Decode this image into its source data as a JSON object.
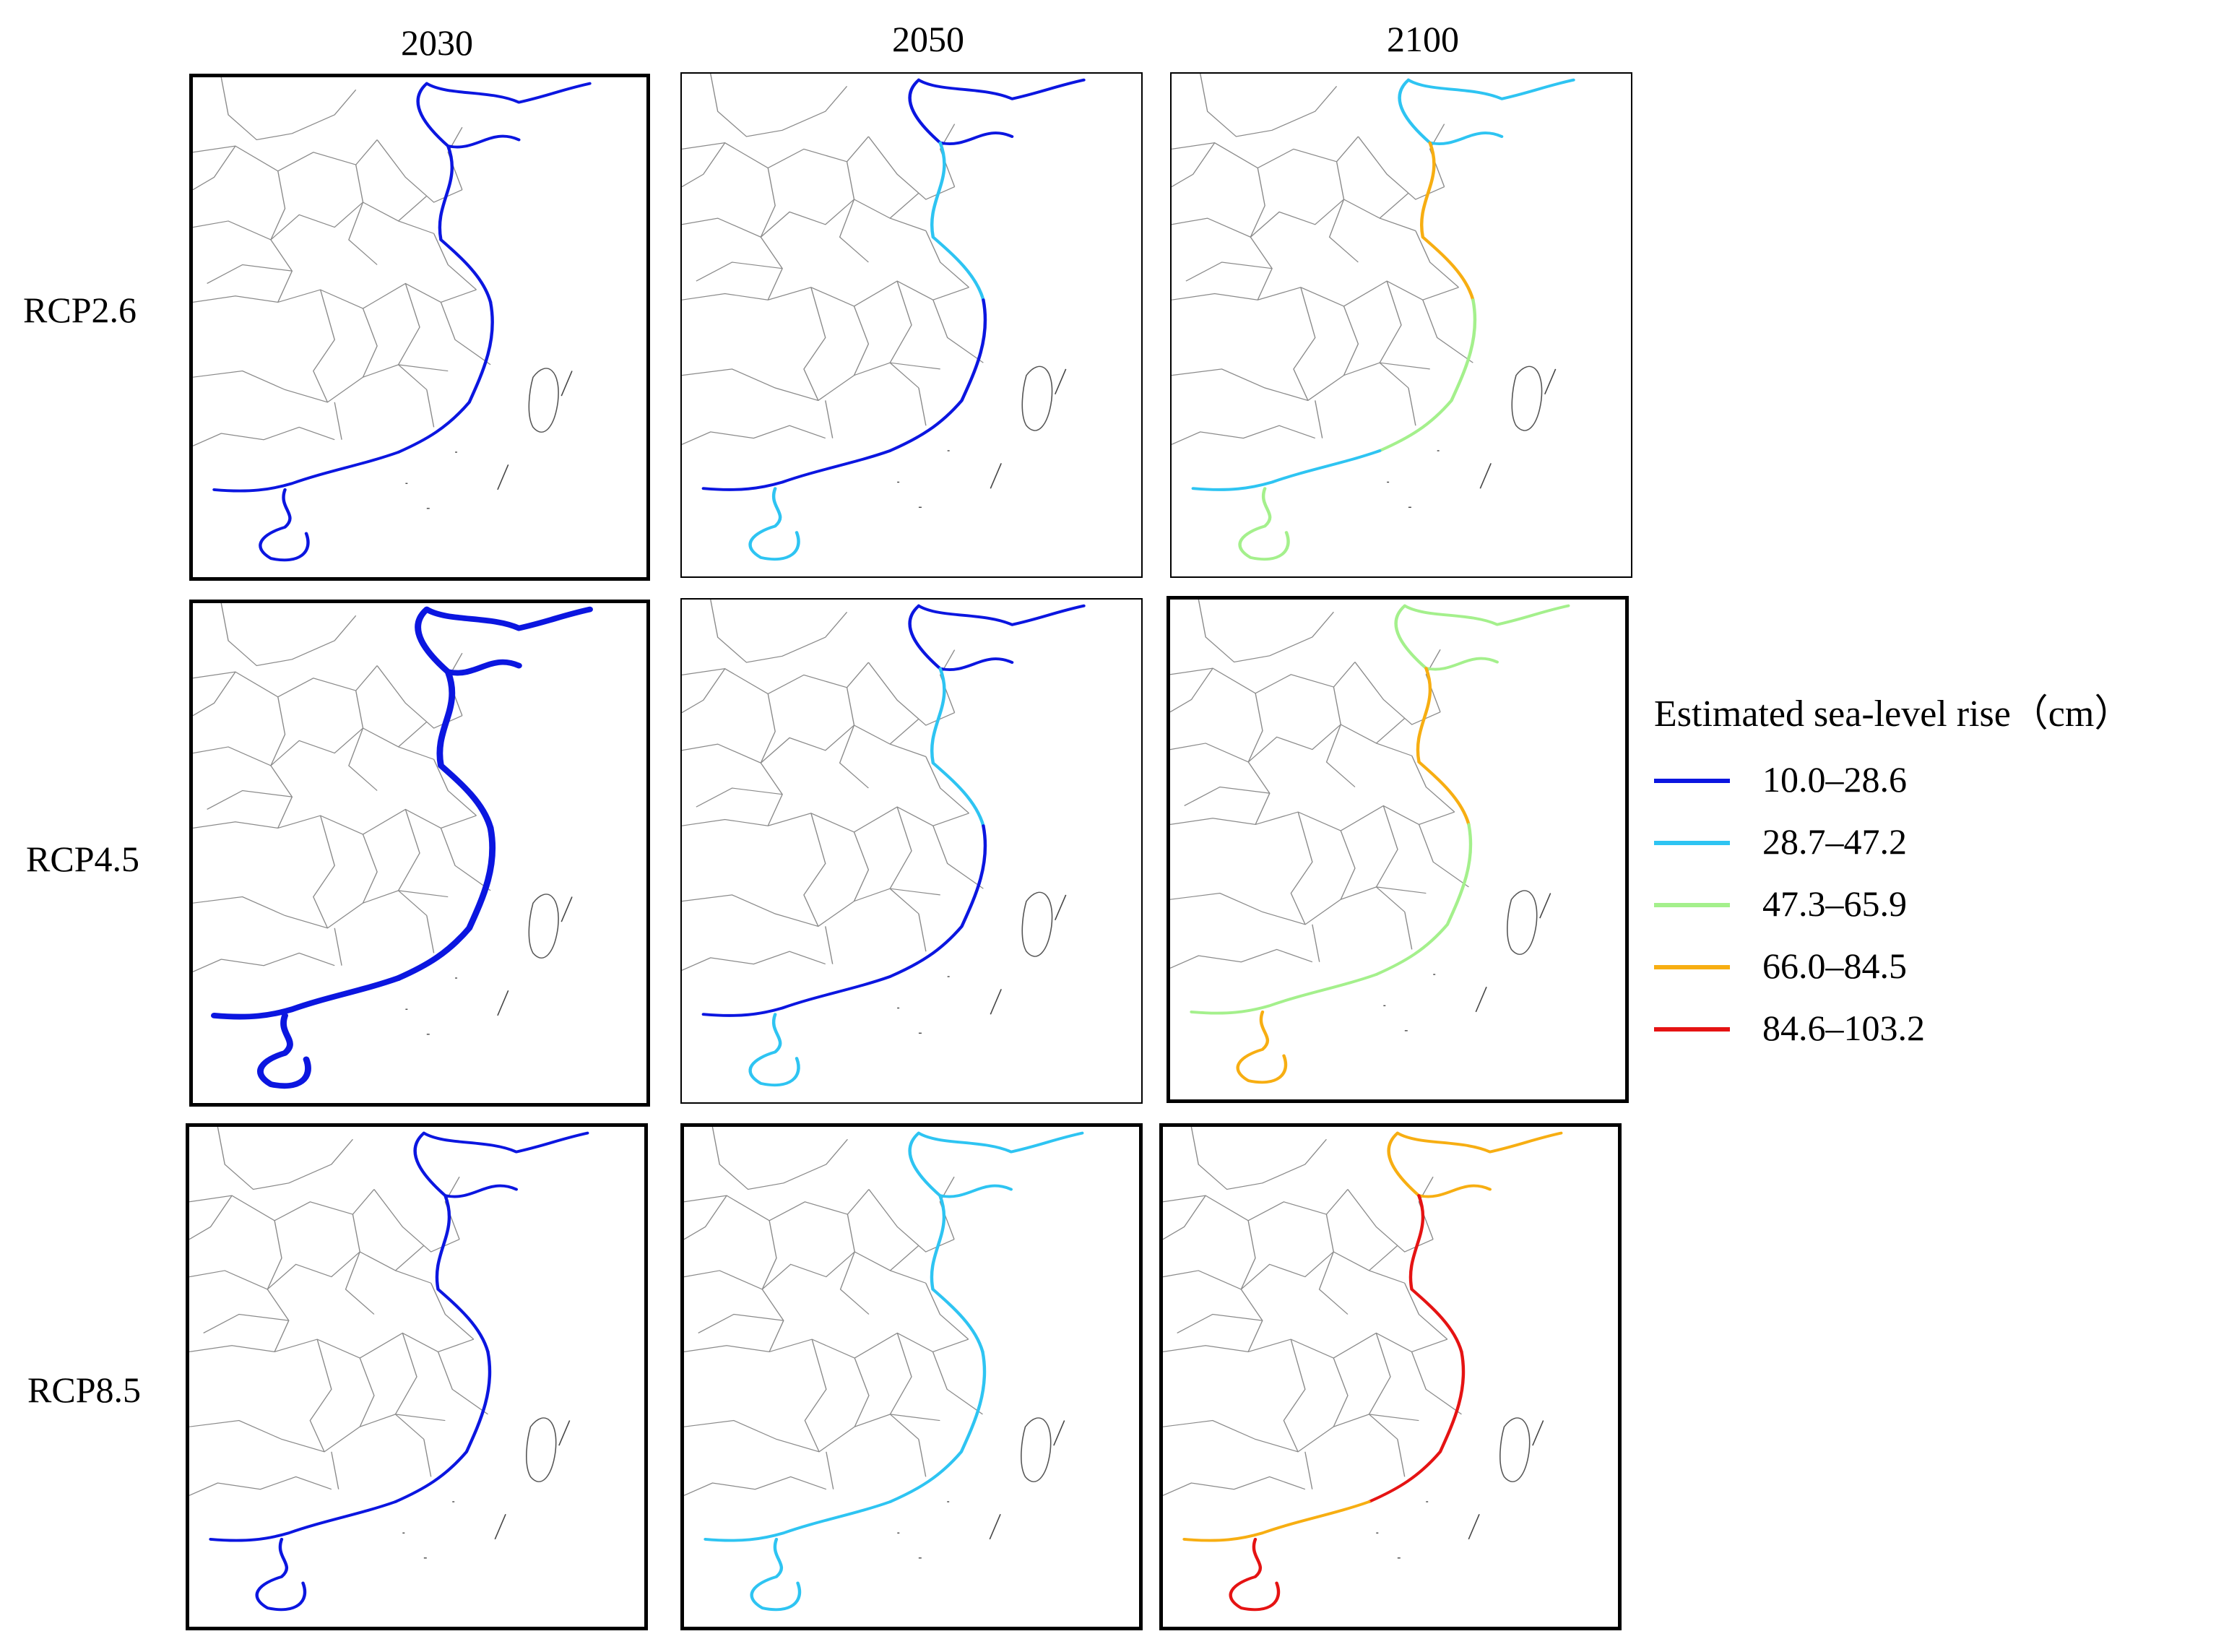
{
  "columns": [
    "2030",
    "2050",
    "2100"
  ],
  "rows": [
    "RCP2.6",
    "RCP4.5",
    "RCP8.5"
  ],
  "legend": {
    "title": "Estimated sea-level rise（cm）",
    "classes": [
      {
        "label": "10.0–28.6",
        "color": "#0b16e0"
      },
      {
        "label": "28.7–47.2",
        "color": "#2ec4f2"
      },
      {
        "label": "47.3–65.9",
        "color": "#a4f08c"
      },
      {
        "label": "66.0–84.5",
        "color": "#f7ae12"
      },
      {
        "label": "84.6–103.2",
        "color": "#e51313"
      }
    ]
  },
  "panels": [
    {
      "scenario": "RCP2.6",
      "year": "2030",
      "segments": [
        "10.0–28.6",
        "10.0–28.6",
        "10.0–28.6",
        "10.0–28.6",
        "10.0–28.6",
        "10.0–28.6"
      ]
    },
    {
      "scenario": "RCP2.6",
      "year": "2050",
      "segments": [
        "10.0–28.6",
        "10.0–28.6",
        "28.7–47.2",
        "10.0–28.6",
        "10.0–28.6",
        "28.7–47.2"
      ]
    },
    {
      "scenario": "RCP2.6",
      "year": "2100",
      "segments": [
        "28.7–47.2",
        "28.7–47.2",
        "66.0–84.5",
        "47.3–65.9",
        "28.7–47.2",
        "47.3–65.9"
      ]
    },
    {
      "scenario": "RCP4.5",
      "year": "2030",
      "segments": [
        "10.0–28.6",
        "10.0–28.6",
        "10.0–28.6",
        "10.0–28.6",
        "10.0–28.6",
        "10.0–28.6"
      ]
    },
    {
      "scenario": "RCP4.5",
      "year": "2050",
      "segments": [
        "10.0–28.6",
        "10.0–28.6",
        "28.7–47.2",
        "10.0–28.6",
        "10.0–28.6",
        "28.7–47.2"
      ]
    },
    {
      "scenario": "RCP4.5",
      "year": "2100",
      "segments": [
        "47.3–65.9",
        "47.3–65.9",
        "66.0–84.5",
        "47.3–65.9",
        "47.3–65.9",
        "66.0–84.5"
      ]
    },
    {
      "scenario": "RCP8.5",
      "year": "2030",
      "segments": [
        "10.0–28.6",
        "10.0–28.6",
        "10.0–28.6",
        "10.0–28.6",
        "10.0–28.6",
        "10.0–28.6"
      ]
    },
    {
      "scenario": "RCP8.5",
      "year": "2050",
      "segments": [
        "28.7–47.2",
        "28.7–47.2",
        "28.7–47.2",
        "28.7–47.2",
        "28.7–47.2",
        "28.7–47.2"
      ]
    },
    {
      "scenario": "RCP8.5",
      "year": "2100",
      "segments": [
        "66.0–84.5",
        "66.0–84.5",
        "84.6–103.2",
        "84.6–103.2",
        "66.0–84.5",
        "84.6–103.2"
      ]
    }
  ]
}
